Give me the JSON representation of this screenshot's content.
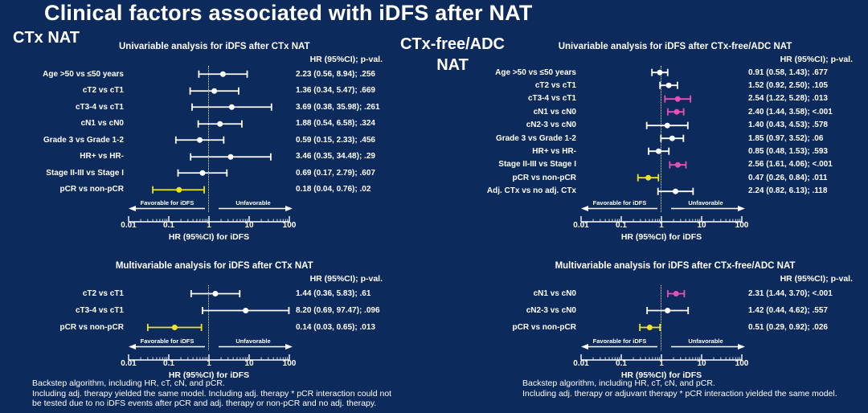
{
  "page": {
    "title": "Clinical factors associated with iDFS after NAT",
    "left_section_label": "CTx NAT",
    "right_section_label_line1": "CTx-free/ADC",
    "right_section_label_line2": "NAT",
    "left_footnote_lines": [
      "Backstep algorithm, including HR, cT, cN, and pCR.",
      "Including adj. therapy yielded the same model. Including adj. therapy * pCR interaction could not",
      "be tested due to no iDFS events after pCR and adj. therapy or non-pCR and no adj. therapy."
    ],
    "right_footnote_lines": [
      "Backstep algorithm, including HR, cT, cN, and pCR.",
      "Including adj. therapy or adjuvant therapy * pCR interaction yielded the same model."
    ]
  },
  "colors": {
    "background": "#0d2a5c",
    "text": "#ffffff",
    "significant_pink": "#ea4fb2",
    "pcr_yellow": "#efe322"
  },
  "chart_data": [
    {
      "type": "forest",
      "title": "Univariable analysis for iDFS after CTx NAT",
      "col_header": "HR (95%CI); p-val.",
      "xlabel": "HR (95%CI) for iDFS",
      "x_scale": "log10",
      "x_range": [
        0.01,
        100
      ],
      "x_ticks": [
        0.01,
        0.1,
        1,
        10,
        100
      ],
      "x_tick_labels": [
        "0.01",
        "0.1",
        "1",
        "10",
        "100"
      ],
      "reference_line": 1,
      "favorable_label": "Favorable for iDFS",
      "unfavorable_label": "Unfavorable",
      "rows": [
        {
          "label": "Age >50 vs ≤50 years",
          "hr": 2.23,
          "ci_low": 0.56,
          "ci_high": 8.94,
          "p": ".256",
          "text": "2.23 (0.56, 8.94); .256",
          "color": "white"
        },
        {
          "label": "cT2 vs cT1",
          "hr": 1.36,
          "ci_low": 0.34,
          "ci_high": 5.47,
          "p": ".669",
          "text": "1.36 (0.34, 5.47); .669",
          "color": "white"
        },
        {
          "label": "cT3-4 vs cT1",
          "hr": 3.69,
          "ci_low": 0.38,
          "ci_high": 35.98,
          "p": ".261",
          "text": "3.69 (0.38, 35.98); .261",
          "color": "white"
        },
        {
          "label": "cN1 vs cN0",
          "hr": 1.88,
          "ci_low": 0.54,
          "ci_high": 6.58,
          "p": ".324",
          "text": "1.88 (0.54, 6.58); .324",
          "color": "white"
        },
        {
          "label": "Grade 3 vs Grade 1-2",
          "hr": 0.59,
          "ci_low": 0.15,
          "ci_high": 2.33,
          "p": ".456",
          "text": "0.59 (0.15, 2.33); .456",
          "color": "white"
        },
        {
          "label": "HR+ vs HR-",
          "hr": 3.46,
          "ci_low": 0.35,
          "ci_high": 34.48,
          "p": ".29",
          "text": "3.46 (0.35, 34.48); .29",
          "color": "white"
        },
        {
          "label": "Stage II-III vs Stage I",
          "hr": 0.69,
          "ci_low": 0.17,
          "ci_high": 2.79,
          "p": ".607",
          "text": "0.69 (0.17, 2.79); .607",
          "color": "white"
        },
        {
          "label": "pCR vs non-pCR",
          "hr": 0.18,
          "ci_low": 0.04,
          "ci_high": 0.76,
          "p": ".02",
          "text": "0.18 (0.04, 0.76); .02",
          "color": "yellow"
        }
      ]
    },
    {
      "type": "forest",
      "title": "Univariable analysis for iDFS after CTx-free/ADC NAT",
      "col_header": "HR (95%CI); p-val.",
      "xlabel": "HR (95%CI) for iDFS",
      "x_scale": "log10",
      "x_range": [
        0.01,
        100
      ],
      "x_ticks": [
        0.01,
        0.1,
        1,
        10,
        100
      ],
      "x_tick_labels": [
        "0.01",
        "0.1",
        "1",
        "10",
        "100"
      ],
      "reference_line": 1,
      "favorable_label": "Favorable for iDFS",
      "unfavorable_label": "Unfavorable",
      "rows": [
        {
          "label": "Age >50 vs ≤50 years",
          "hr": 0.91,
          "ci_low": 0.58,
          "ci_high": 1.43,
          "p": ".677",
          "text": "0.91 (0.58, 1.43); .677",
          "color": "white"
        },
        {
          "label": "cT2 vs cT1",
          "hr": 1.52,
          "ci_low": 0.92,
          "ci_high": 2.5,
          "p": ".105",
          "text": "1.52 (0.92, 2.50); .105",
          "color": "white"
        },
        {
          "label": "cT3-4 vs cT1",
          "hr": 2.54,
          "ci_low": 1.22,
          "ci_high": 5.28,
          "p": ".013",
          "text": "2.54 (1.22, 5.28); .013",
          "color": "pink"
        },
        {
          "label": "cN1 vs cN0",
          "hr": 2.4,
          "ci_low": 1.44,
          "ci_high": 3.58,
          "p": "<.001",
          "text": "2.40 (1.44, 3.58); <.001",
          "color": "pink"
        },
        {
          "label": "cN2-3 vs cN0",
          "hr": 1.4,
          "ci_low": 0.43,
          "ci_high": 4.53,
          "p": ".578",
          "text": "1.40 (0.43, 4.53); .578",
          "color": "white"
        },
        {
          "label": "Grade 3 vs Grade 1-2",
          "hr": 1.85,
          "ci_low": 0.97,
          "ci_high": 3.52,
          "p": ".06",
          "text": "1.85 (0.97, 3.52); .06",
          "color": "white"
        },
        {
          "label": "HR+ vs HR-",
          "hr": 0.85,
          "ci_low": 0.48,
          "ci_high": 1.53,
          "p": ".593",
          "text": "0.85 (0.48, 1.53); .593",
          "color": "white"
        },
        {
          "label": "Stage II-III vs Stage I",
          "hr": 2.56,
          "ci_low": 1.61,
          "ci_high": 4.06,
          "p": "<.001",
          "text": "2.56 (1.61, 4.06); <.001",
          "color": "pink"
        },
        {
          "label": "pCR vs non-pCR",
          "hr": 0.47,
          "ci_low": 0.26,
          "ci_high": 0.84,
          "p": ".011",
          "text": "0.47 (0.26, 0.84); .011",
          "color": "yellow"
        },
        {
          "label": "Adj. CTx vs no adj. CTx",
          "hr": 2.24,
          "ci_low": 0.82,
          "ci_high": 6.13,
          "p": ".118",
          "text": "2.24 (0.82, 6.13); .118",
          "color": "white"
        }
      ]
    },
    {
      "type": "forest",
      "title": "Multivariable analysis for iDFS after CTx NAT",
      "col_header": "HR (95%CI); p-val.",
      "xlabel": "HR (95%CI) for iDFS",
      "x_scale": "log10",
      "x_range": [
        0.01,
        100
      ],
      "x_ticks": [
        0.01,
        0.1,
        1,
        10,
        100
      ],
      "x_tick_labels": [
        "0.01",
        "0.1",
        "1",
        "10",
        "100"
      ],
      "reference_line": 1,
      "favorable_label": "Favorable for iDFS",
      "unfavorable_label": "Unfavorable",
      "rows": [
        {
          "label": "cT2 vs cT1",
          "hr": 1.44,
          "ci_low": 0.36,
          "ci_high": 5.83,
          "p": ".61",
          "text": "1.44 (0.36, 5.83); .61",
          "color": "white"
        },
        {
          "label": "cT3-4 vs cT1",
          "hr": 8.2,
          "ci_low": 0.69,
          "ci_high": 97.47,
          "p": ".096",
          "text": "8.20 (0.69, 97.47); .096",
          "color": "white"
        },
        {
          "label": "pCR vs non-pCR",
          "hr": 0.14,
          "ci_low": 0.03,
          "ci_high": 0.65,
          "p": ".013",
          "text": "0.14 (0.03, 0.65); .013",
          "color": "yellow"
        }
      ]
    },
    {
      "type": "forest",
      "title": "Multivariable analysis for iDFS after CTx-free/ADC NAT",
      "col_header": "HR (95%CI); p-val.",
      "xlabel": "HR (95%CI) for iDFS",
      "x_scale": "log10",
      "x_range": [
        0.01,
        100
      ],
      "x_ticks": [
        0.01,
        0.1,
        1,
        10,
        100
      ],
      "x_tick_labels": [
        "0.01",
        "0.1",
        "1",
        "10",
        "100"
      ],
      "reference_line": 1,
      "favorable_label": "Favorable for iDFS",
      "unfavorable_label": "Unfavorable",
      "rows": [
        {
          "label": "cN1 vs cN0",
          "hr": 2.31,
          "ci_low": 1.44,
          "ci_high": 3.7,
          "p": "<.001",
          "text": "2.31 (1.44, 3.70); <.001",
          "color": "pink"
        },
        {
          "label": "cN2-3 vs cN0",
          "hr": 1.42,
          "ci_low": 0.44,
          "ci_high": 4.62,
          "p": ".557",
          "text": "1.42 (0.44, 4.62); .557",
          "color": "white"
        },
        {
          "label": "pCR vs non-pCR",
          "hr": 0.51,
          "ci_low": 0.29,
          "ci_high": 0.92,
          "p": ".026",
          "text": "0.51 (0.29, 0.92); .026",
          "color": "yellow"
        }
      ]
    }
  ]
}
